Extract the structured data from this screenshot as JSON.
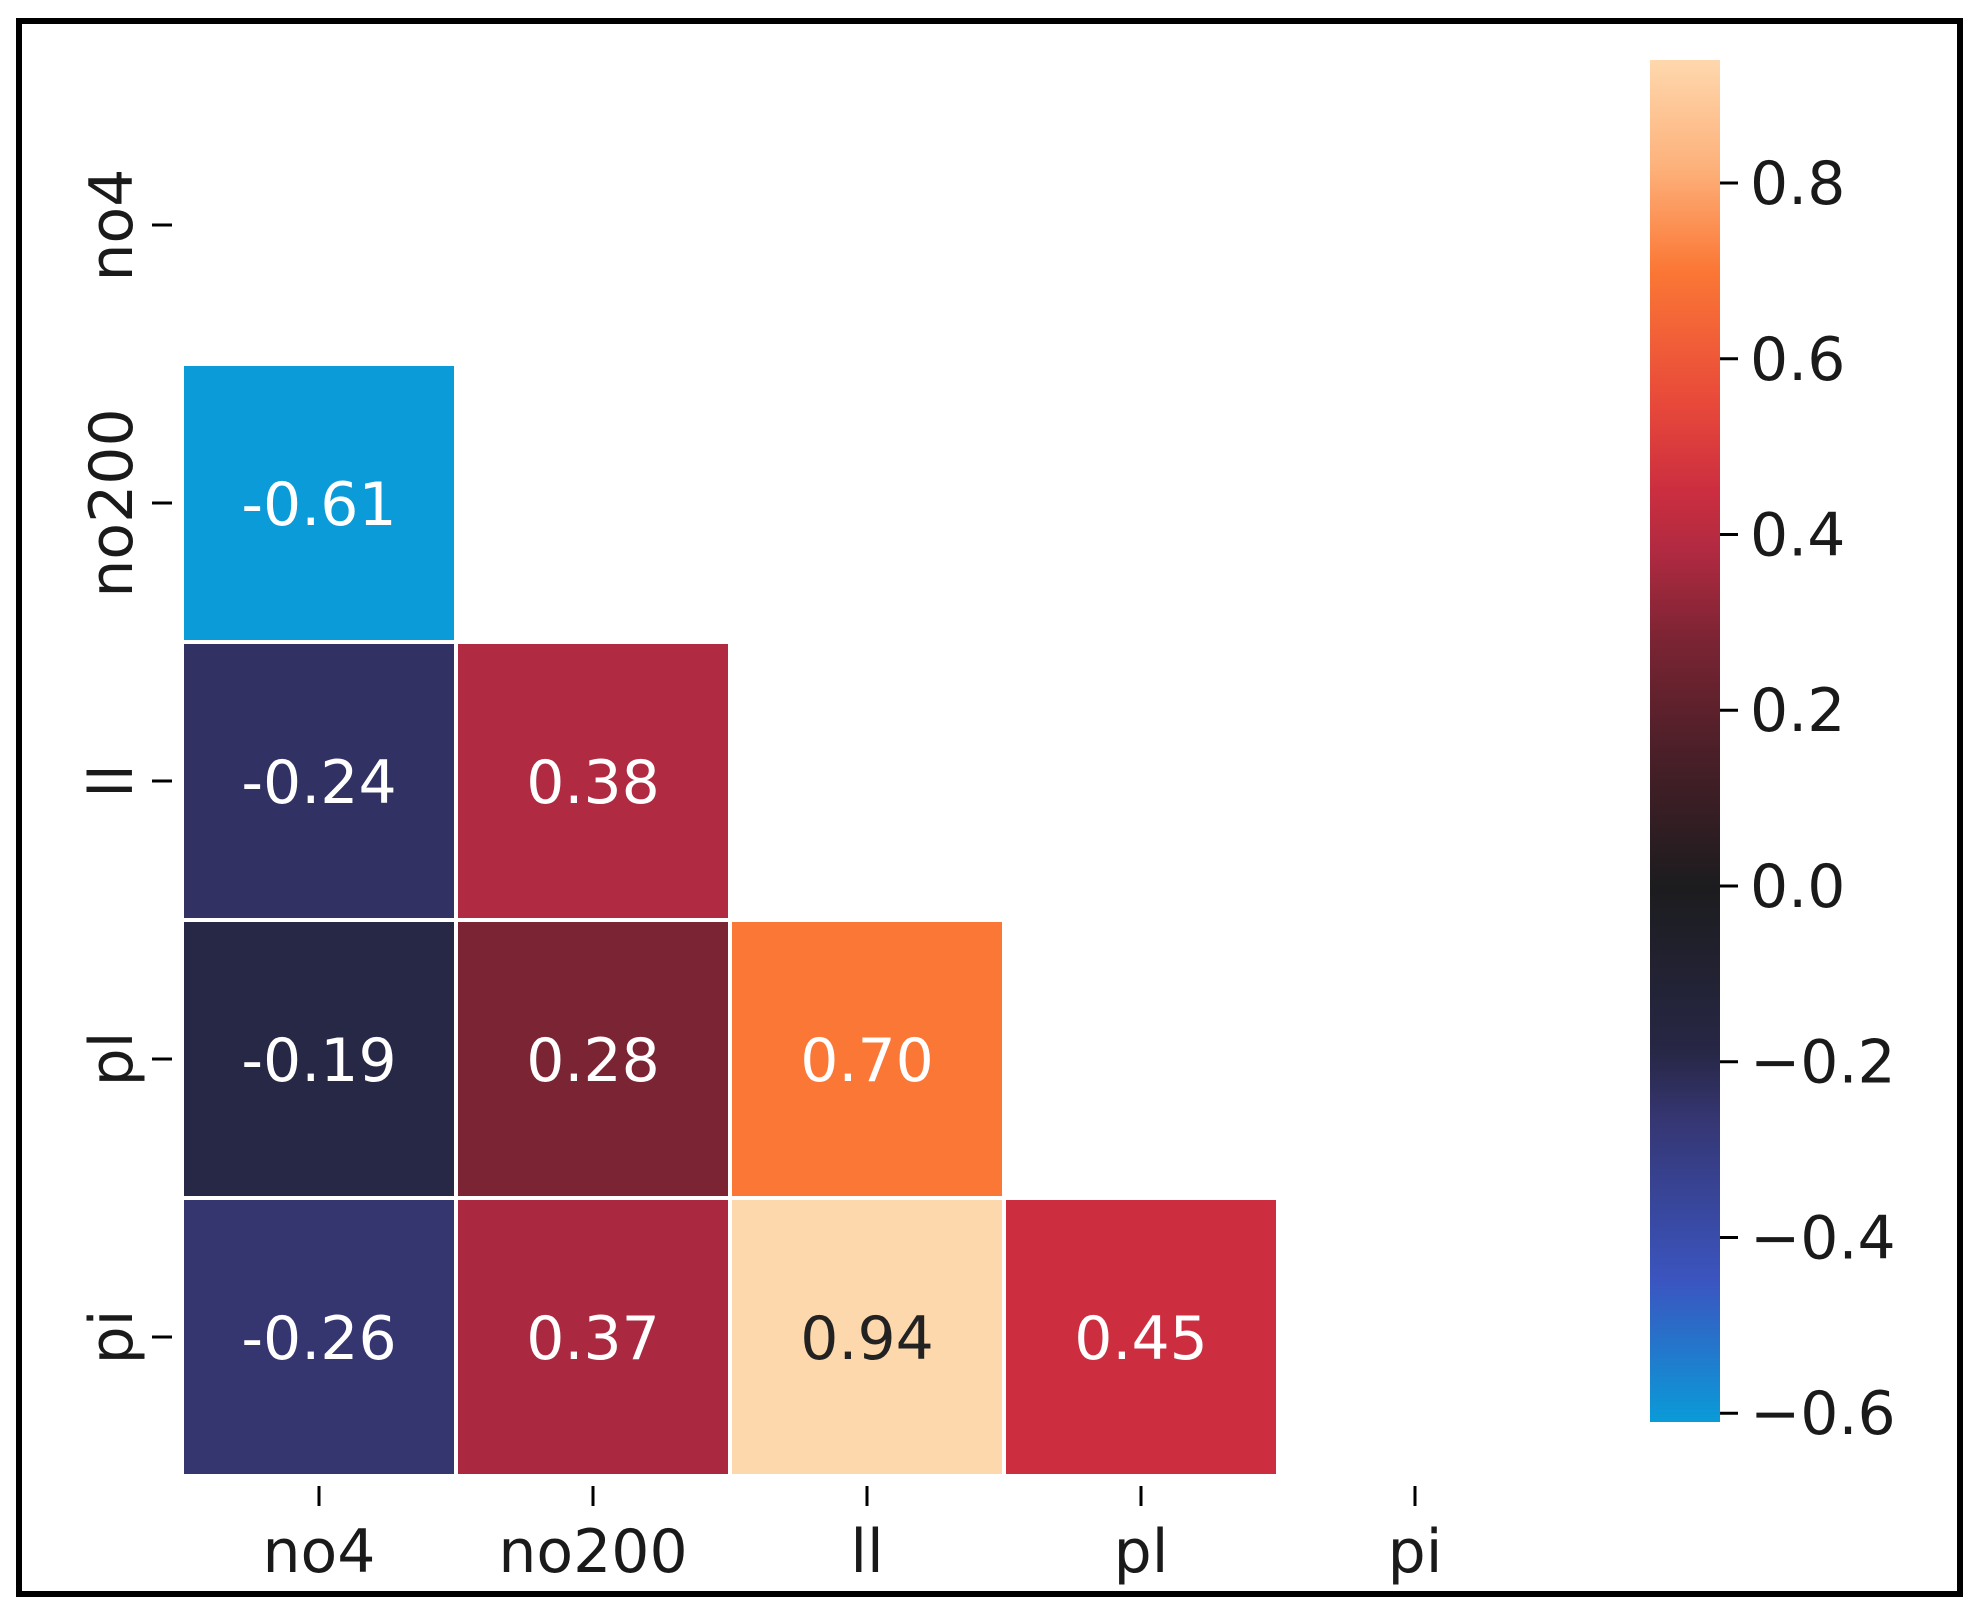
{
  "chart_data": {
    "type": "heatmap",
    "title": "",
    "xlabel": "",
    "ylabel": "",
    "x_categories": [
      "no4",
      "no200",
      "ll",
      "pl",
      "pi"
    ],
    "y_categories": [
      "no4",
      "no200",
      "ll",
      "pl",
      "pi"
    ],
    "mask": "upper-triangle-and-diagonal",
    "cells": [
      {
        "row": "no200",
        "col": "no4",
        "value": -0.61,
        "label": "-0.61"
      },
      {
        "row": "ll",
        "col": "no4",
        "value": -0.24,
        "label": "-0.24"
      },
      {
        "row": "ll",
        "col": "no200",
        "value": 0.38,
        "label": "0.38"
      },
      {
        "row": "pl",
        "col": "no4",
        "value": -0.19,
        "label": "-0.19"
      },
      {
        "row": "pl",
        "col": "no200",
        "value": 0.28,
        "label": "0.28"
      },
      {
        "row": "pl",
        "col": "ll",
        "value": 0.7,
        "label": "0.70"
      },
      {
        "row": "pi",
        "col": "no4",
        "value": -0.26,
        "label": "-0.26"
      },
      {
        "row": "pi",
        "col": "no200",
        "value": 0.37,
        "label": "0.37"
      },
      {
        "row": "pi",
        "col": "ll",
        "value": 0.94,
        "label": "0.94"
      },
      {
        "row": "pi",
        "col": "pl",
        "value": 0.45,
        "label": "0.45"
      }
    ],
    "colorbar": {
      "range": [
        -0.61,
        0.94
      ],
      "ticks": [
        0.8,
        0.6,
        0.4,
        0.2,
        0.0,
        -0.2,
        -0.4,
        -0.6
      ],
      "tick_labels": [
        "0.8",
        "0.6",
        "0.4",
        "0.2",
        "0.0",
        "−0.2",
        "−0.4",
        "−0.6"
      ]
    },
    "colormap": "icefire",
    "colormap_stops": [
      {
        "v": -0.61,
        "color": "#0a9bd8"
      },
      {
        "v": -0.45,
        "color": "#3b55c0"
      },
      {
        "v": -0.26,
        "color": "#353570"
      },
      {
        "v": -0.19,
        "color": "#272746"
      },
      {
        "v": 0.0,
        "color": "#1c1c1e"
      },
      {
        "v": 0.15,
        "color": "#4a1f28"
      },
      {
        "v": 0.28,
        "color": "#7b2433"
      },
      {
        "v": 0.38,
        "color": "#b02a41"
      },
      {
        "v": 0.45,
        "color": "#cc2e40"
      },
      {
        "v": 0.55,
        "color": "#e8493a"
      },
      {
        "v": 0.7,
        "color": "#fb7735"
      },
      {
        "v": 0.82,
        "color": "#fdb27c"
      },
      {
        "v": 0.94,
        "color": "#fed8ad"
      }
    ],
    "annotation_dark_text_color": "#222222",
    "annotation_light_text_color": "#ffffff",
    "grid": false,
    "cell_border_color": "#ffffff"
  }
}
